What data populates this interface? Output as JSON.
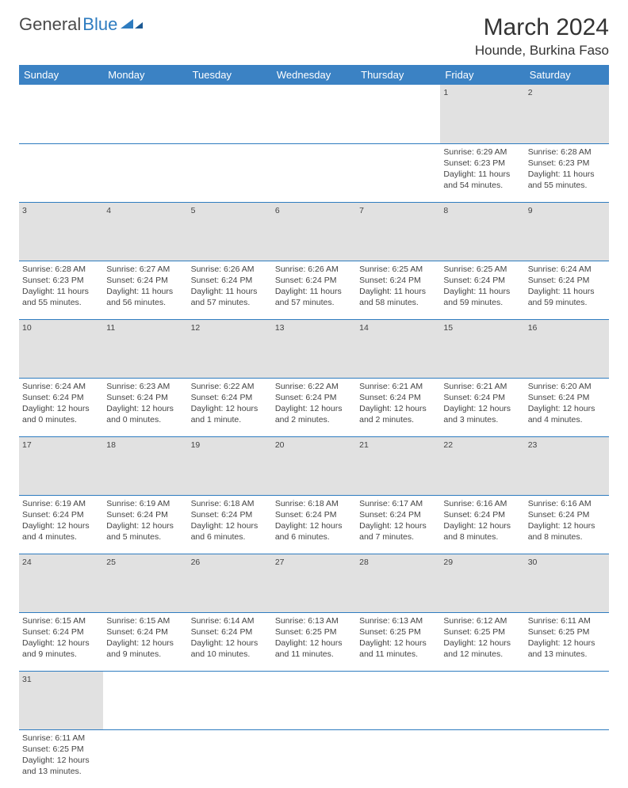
{
  "logo": {
    "text1": "General",
    "text2": "Blue"
  },
  "title": "March 2024",
  "location": "Hounde, Burkina Faso",
  "colors": {
    "header_bg": "#3b82c4",
    "header_text": "#ffffff",
    "daynum_bg": "#e1e1e1",
    "row_divider": "#2e7cc0",
    "logo_gray": "#4a4a4a",
    "logo_blue": "#2e7cc0"
  },
  "day_headers": [
    "Sunday",
    "Monday",
    "Tuesday",
    "Wednesday",
    "Thursday",
    "Friday",
    "Saturday"
  ],
  "weeks": [
    [
      null,
      null,
      null,
      null,
      null,
      {
        "n": "1",
        "sr": "Sunrise: 6:29 AM",
        "ss": "Sunset: 6:23 PM",
        "dl": "Daylight: 11 hours and 54 minutes."
      },
      {
        "n": "2",
        "sr": "Sunrise: 6:28 AM",
        "ss": "Sunset: 6:23 PM",
        "dl": "Daylight: 11 hours and 55 minutes."
      }
    ],
    [
      {
        "n": "3",
        "sr": "Sunrise: 6:28 AM",
        "ss": "Sunset: 6:23 PM",
        "dl": "Daylight: 11 hours and 55 minutes."
      },
      {
        "n": "4",
        "sr": "Sunrise: 6:27 AM",
        "ss": "Sunset: 6:24 PM",
        "dl": "Daylight: 11 hours and 56 minutes."
      },
      {
        "n": "5",
        "sr": "Sunrise: 6:26 AM",
        "ss": "Sunset: 6:24 PM",
        "dl": "Daylight: 11 hours and 57 minutes."
      },
      {
        "n": "6",
        "sr": "Sunrise: 6:26 AM",
        "ss": "Sunset: 6:24 PM",
        "dl": "Daylight: 11 hours and 57 minutes."
      },
      {
        "n": "7",
        "sr": "Sunrise: 6:25 AM",
        "ss": "Sunset: 6:24 PM",
        "dl": "Daylight: 11 hours and 58 minutes."
      },
      {
        "n": "8",
        "sr": "Sunrise: 6:25 AM",
        "ss": "Sunset: 6:24 PM",
        "dl": "Daylight: 11 hours and 59 minutes."
      },
      {
        "n": "9",
        "sr": "Sunrise: 6:24 AM",
        "ss": "Sunset: 6:24 PM",
        "dl": "Daylight: 11 hours and 59 minutes."
      }
    ],
    [
      {
        "n": "10",
        "sr": "Sunrise: 6:24 AM",
        "ss": "Sunset: 6:24 PM",
        "dl": "Daylight: 12 hours and 0 minutes."
      },
      {
        "n": "11",
        "sr": "Sunrise: 6:23 AM",
        "ss": "Sunset: 6:24 PM",
        "dl": "Daylight: 12 hours and 0 minutes."
      },
      {
        "n": "12",
        "sr": "Sunrise: 6:22 AM",
        "ss": "Sunset: 6:24 PM",
        "dl": "Daylight: 12 hours and 1 minute."
      },
      {
        "n": "13",
        "sr": "Sunrise: 6:22 AM",
        "ss": "Sunset: 6:24 PM",
        "dl": "Daylight: 12 hours and 2 minutes."
      },
      {
        "n": "14",
        "sr": "Sunrise: 6:21 AM",
        "ss": "Sunset: 6:24 PM",
        "dl": "Daylight: 12 hours and 2 minutes."
      },
      {
        "n": "15",
        "sr": "Sunrise: 6:21 AM",
        "ss": "Sunset: 6:24 PM",
        "dl": "Daylight: 12 hours and 3 minutes."
      },
      {
        "n": "16",
        "sr": "Sunrise: 6:20 AM",
        "ss": "Sunset: 6:24 PM",
        "dl": "Daylight: 12 hours and 4 minutes."
      }
    ],
    [
      {
        "n": "17",
        "sr": "Sunrise: 6:19 AM",
        "ss": "Sunset: 6:24 PM",
        "dl": "Daylight: 12 hours and 4 minutes."
      },
      {
        "n": "18",
        "sr": "Sunrise: 6:19 AM",
        "ss": "Sunset: 6:24 PM",
        "dl": "Daylight: 12 hours and 5 minutes."
      },
      {
        "n": "19",
        "sr": "Sunrise: 6:18 AM",
        "ss": "Sunset: 6:24 PM",
        "dl": "Daylight: 12 hours and 6 minutes."
      },
      {
        "n": "20",
        "sr": "Sunrise: 6:18 AM",
        "ss": "Sunset: 6:24 PM",
        "dl": "Daylight: 12 hours and 6 minutes."
      },
      {
        "n": "21",
        "sr": "Sunrise: 6:17 AM",
        "ss": "Sunset: 6:24 PM",
        "dl": "Daylight: 12 hours and 7 minutes."
      },
      {
        "n": "22",
        "sr": "Sunrise: 6:16 AM",
        "ss": "Sunset: 6:24 PM",
        "dl": "Daylight: 12 hours and 8 minutes."
      },
      {
        "n": "23",
        "sr": "Sunrise: 6:16 AM",
        "ss": "Sunset: 6:24 PM",
        "dl": "Daylight: 12 hours and 8 minutes."
      }
    ],
    [
      {
        "n": "24",
        "sr": "Sunrise: 6:15 AM",
        "ss": "Sunset: 6:24 PM",
        "dl": "Daylight: 12 hours and 9 minutes."
      },
      {
        "n": "25",
        "sr": "Sunrise: 6:15 AM",
        "ss": "Sunset: 6:24 PM",
        "dl": "Daylight: 12 hours and 9 minutes."
      },
      {
        "n": "26",
        "sr": "Sunrise: 6:14 AM",
        "ss": "Sunset: 6:24 PM",
        "dl": "Daylight: 12 hours and 10 minutes."
      },
      {
        "n": "27",
        "sr": "Sunrise: 6:13 AM",
        "ss": "Sunset: 6:25 PM",
        "dl": "Daylight: 12 hours and 11 minutes."
      },
      {
        "n": "28",
        "sr": "Sunrise: 6:13 AM",
        "ss": "Sunset: 6:25 PM",
        "dl": "Daylight: 12 hours and 11 minutes."
      },
      {
        "n": "29",
        "sr": "Sunrise: 6:12 AM",
        "ss": "Sunset: 6:25 PM",
        "dl": "Daylight: 12 hours and 12 minutes."
      },
      {
        "n": "30",
        "sr": "Sunrise: 6:11 AM",
        "ss": "Sunset: 6:25 PM",
        "dl": "Daylight: 12 hours and 13 minutes."
      }
    ],
    [
      {
        "n": "31",
        "sr": "Sunrise: 6:11 AM",
        "ss": "Sunset: 6:25 PM",
        "dl": "Daylight: 12 hours and 13 minutes."
      },
      null,
      null,
      null,
      null,
      null,
      null
    ]
  ]
}
